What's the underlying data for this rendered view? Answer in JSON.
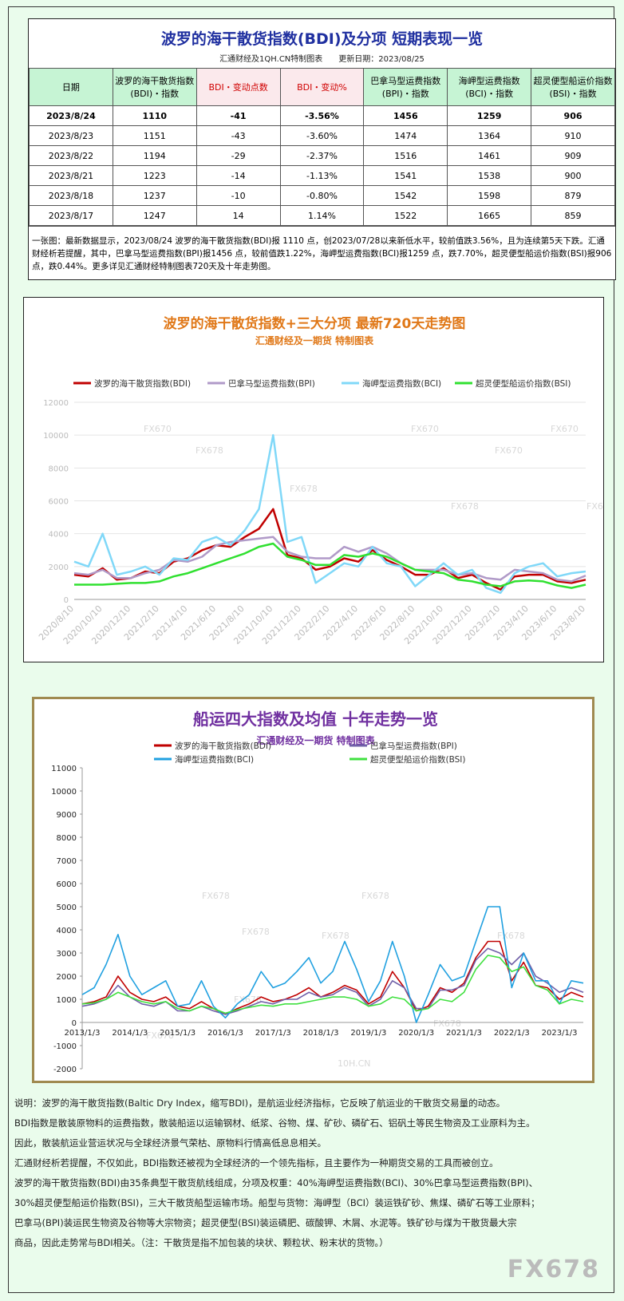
{
  "table": {
    "title": "波罗的海干散货指数(BDI)及分项 短期表现一览",
    "source": "汇通财经及1QH.CN特制图表",
    "updated": "更新日期：2023/08/25",
    "headers": [
      "日期",
      "波罗的海干散货指数(BDI)・指数",
      "BDI・变动点数",
      "BDI・变动%",
      "巴拿马型运费指数(BPI)・指数",
      "海岬型运费指数(BCI)・指数",
      "超灵便型船运价指数(BSI)・指数"
    ],
    "rows": [
      [
        "2023/8/24",
        "1110",
        "-41",
        "-3.56%",
        "1456",
        "1259",
        "906"
      ],
      [
        "2023/8/23",
        "1151",
        "-43",
        "-3.60%",
        "1474",
        "1364",
        "910"
      ],
      [
        "2023/8/22",
        "1194",
        "-29",
        "-2.37%",
        "1516",
        "1461",
        "909"
      ],
      [
        "2023/8/21",
        "1223",
        "-14",
        "-1.13%",
        "1541",
        "1538",
        "900"
      ],
      [
        "2023/8/18",
        "1237",
        "-10",
        "-0.80%",
        "1542",
        "1598",
        "879"
      ],
      [
        "2023/8/17",
        "1247",
        "14",
        "1.14%",
        "1522",
        "1665",
        "859"
      ]
    ],
    "note": "一张图：最新数据显示，2023/08/24 波罗的海干散货指数(BDI)报 1110 点，创2023/07/28以来新低水平，较前值跌3.56%，且为连续第5天下跌。汇通财经析若提醒，其中，巴拿马型运费指数(BPI)报1456 点，较前值跌1.22%，海岬型运费指数(BCI)报1259 点，跌7.70%，超灵便型船运价指数(BSI)报906 点，跌0.44%。更多详见汇通财经特制图表720天及十年走势图。"
  },
  "chart_data": [
    {
      "type": "line",
      "title": "波罗的海干散货指数+三大分项  最新720天走势图",
      "subtitle": "汇通财经及一期货  特制图表",
      "categories": [
        "2020/8/10",
        null,
        "2020/10/10",
        null,
        "2020/12/10",
        null,
        "2021/2/10",
        null,
        "2021/4/10",
        null,
        "2021/6/10",
        null,
        "2021/8/10",
        null,
        "2021/10/10",
        null,
        "2021/12/10",
        null,
        "2022/2/10",
        null,
        "2022/4/10",
        null,
        "2022/6/10",
        null,
        "2022/8/10",
        null,
        "2022/10/10",
        null,
        "2022/12/10",
        null,
        "2023/2/10",
        null,
        "2023/4/10",
        null,
        "2023/6/10",
        null,
        "2023/8/10"
      ],
      "series": [
        {
          "name": "波罗的海干散货指数(BDI)",
          "color": "#c00000",
          "values": [
            1500,
            1400,
            1900,
            1200,
            1300,
            1700,
            1600,
            2300,
            2500,
            3000,
            3300,
            3200,
            3800,
            4300,
            5500,
            2700,
            2500,
            1800,
            2000,
            2500,
            2300,
            3000,
            2400,
            2000,
            1500,
            1500,
            1900,
            1300,
            1500,
            1000,
            600,
            1400,
            1500,
            1500,
            1100,
            1000,
            1200
          ]
        },
        {
          "name": "巴拿马型运费指数(BPI)",
          "color": "#b09ac8",
          "values": [
            1600,
            1500,
            1800,
            1300,
            1300,
            1600,
            1800,
            2400,
            2300,
            2600,
            3300,
            3500,
            3600,
            3700,
            3800,
            2900,
            2600,
            2500,
            2500,
            3200,
            2900,
            3200,
            2800,
            2200,
            1800,
            1800,
            1800,
            1500,
            1600,
            1300,
            1200,
            1800,
            1700,
            1600,
            1200,
            1100,
            1450
          ]
        },
        {
          "name": "海岬型运费指数(BCI)",
          "color": "#80d8f8",
          "values": [
            2300,
            2000,
            4000,
            1500,
            1700,
            2000,
            1500,
            2500,
            2400,
            3500,
            3800,
            3300,
            4200,
            5500,
            10000,
            3500,
            3800,
            1000,
            1600,
            2200,
            2000,
            3200,
            2200,
            2000,
            800,
            1500,
            2200,
            1500,
            1800,
            700,
            400,
            1600,
            2000,
            2200,
            1400,
            1600,
            1700
          ]
        },
        {
          "name": "超灵便型船运价指数(BSI)",
          "color": "#30e030",
          "values": [
            900,
            900,
            900,
            950,
            1000,
            1000,
            1100,
            1400,
            1600,
            1900,
            2200,
            2500,
            2800,
            3200,
            3400,
            2600,
            2400,
            2100,
            2100,
            2700,
            2600,
            2800,
            2600,
            2200,
            1800,
            1700,
            1600,
            1200,
            1100,
            900,
            800,
            1100,
            1150,
            1100,
            850,
            700,
            900
          ]
        }
      ],
      "ylim": [
        0,
        12000
      ],
      "yticks": [
        0,
        2000,
        4000,
        6000,
        8000,
        10000,
        12000
      ],
      "grid": true,
      "legend": "top",
      "watermarks": [
        "FX670",
        "FX678",
        "FX678",
        "FX670",
        "FX670",
        "FX678",
        "FX670",
        "FX678"
      ]
    },
    {
      "type": "line",
      "title": "船运四大指数及均值 十年走势一览",
      "subtitle": "汇通财经及一期货 特制图表",
      "categories": [
        "2013/1/3",
        null,
        null,
        null,
        "2014/1/3",
        null,
        null,
        null,
        "2015/1/3",
        null,
        null,
        null,
        "2016/1/3",
        null,
        null,
        null,
        "2017/1/3",
        null,
        null,
        null,
        "2018/1/3",
        null,
        null,
        null,
        "2019/1/3",
        null,
        null,
        null,
        "2020/1/3",
        null,
        null,
        null,
        "2021/1/3",
        null,
        null,
        null,
        "2022/1/3",
        null,
        null,
        null,
        "2023/1/3",
        null,
        null
      ],
      "series": [
        {
          "name": "波罗的海干散货指数(BDI)",
          "color": "#c00000",
          "values": [
            800,
            900,
            1100,
            2000,
            1300,
            1000,
            900,
            1100,
            700,
            600,
            900,
            600,
            350,
            600,
            800,
            1100,
            900,
            1000,
            1200,
            1500,
            1100,
            1300,
            1600,
            1400,
            800,
            1100,
            2200,
            1500,
            500,
            700,
            1500,
            1300,
            1700,
            2800,
            3500,
            3500,
            1800,
            2600,
            1600,
            1500,
            1000,
            1300,
            1100
          ]
        },
        {
          "name": "巴拿马型运费指数(BPI)",
          "color": "#7060a8",
          "values": [
            700,
            800,
            1000,
            1600,
            1100,
            800,
            700,
            900,
            500,
            500,
            700,
            500,
            350,
            500,
            700,
            900,
            800,
            1000,
            1000,
            1300,
            1100,
            1200,
            1500,
            1300,
            700,
            1000,
            1800,
            1500,
            600,
            600,
            1400,
            1400,
            1600,
            2700,
            3200,
            3000,
            2500,
            3000,
            2000,
            1700,
            1300,
            1500,
            1300
          ]
        },
        {
          "name": "海岬型运费指数(BCI)",
          "color": "#20a0e0",
          "values": [
            1200,
            1500,
            2500,
            3800,
            2000,
            1200,
            1500,
            1800,
            700,
            800,
            1800,
            700,
            200,
            800,
            1200,
            2200,
            1500,
            1700,
            2200,
            2800,
            1700,
            2200,
            3500,
            2300,
            900,
            1800,
            3500,
            2000,
            0,
            1200,
            2500,
            1800,
            2000,
            3500,
            5000,
            5000,
            1500,
            3000,
            1800,
            1800,
            800,
            1800,
            1700
          ]
        },
        {
          "name": "超灵便型船运价指数(BSI)",
          "color": "#40e040",
          "values": [
            800,
            850,
            1000,
            1300,
            1100,
            900,
            800,
            900,
            600,
            500,
            700,
            600,
            400,
            550,
            650,
            750,
            700,
            800,
            800,
            900,
            1000,
            1100,
            1100,
            1000,
            700,
            800,
            1100,
            1000,
            500,
            600,
            1000,
            900,
            1300,
            2300,
            2900,
            2800,
            2200,
            2400,
            1600,
            1400,
            800,
            1000,
            900
          ]
        }
      ],
      "ylim": [
        -2000,
        11000
      ],
      "yticks": [
        -2000,
        -1000,
        0,
        1000,
        2000,
        3000,
        4000,
        5000,
        6000,
        7000,
        8000,
        9000,
        10000,
        11000
      ],
      "grid": false,
      "legend": "top",
      "watermarks": [
        "FX678",
        "FX678",
        "FX678",
        "FX678",
        "FX678",
        "FX678",
        "FX678",
        "FX678",
        "10H.CN"
      ]
    }
  ],
  "description": [
    "说明：波罗的海干散货指数(Baltic Dry Index，缩写BDI)，是航运业经济指标，它反映了航运业的干散货交易量的动态。",
    "BDI指数是散装原物料的运费指数，散装船运以运输钢材、纸浆、谷物、煤、矿砂、磷矿石、铝矾土等民生物资及工业原料为主。",
    "因此，散装航运业营运状况与全球经济景气荣枯、原物料行情高低息息相关。",
    "汇通财经析若提醒，不仅如此，BDI指数还被视为全球经济的一个领先指标，且主要作为一种期货交易的工具而被创立。",
    "波罗的海干散货指数(BDI)由35条典型干散货航线组成，分项及权重：40%海岬型运费指数(BCI)、30%巴拿马型运费指数(BPI)、",
    "30%超灵便型船运价指数(BSI)，三大干散货船型运输市场。船型与货物：海岬型（BCI）装运铁矿砂、焦煤、磷矿石等工业原料；",
    "巴拿马(BPI)装运民生物资及谷物等大宗物资；超灵便型(BSI)装运磷肥、碳酸钾、木屑、水泥等。铁矿砂与煤为干散货最大宗",
    "商品，因此走势常与BDI相关。（注：干散货是指不加包装的块状、颗粒状、粉末状的货物。）"
  ],
  "logo": "FX678"
}
